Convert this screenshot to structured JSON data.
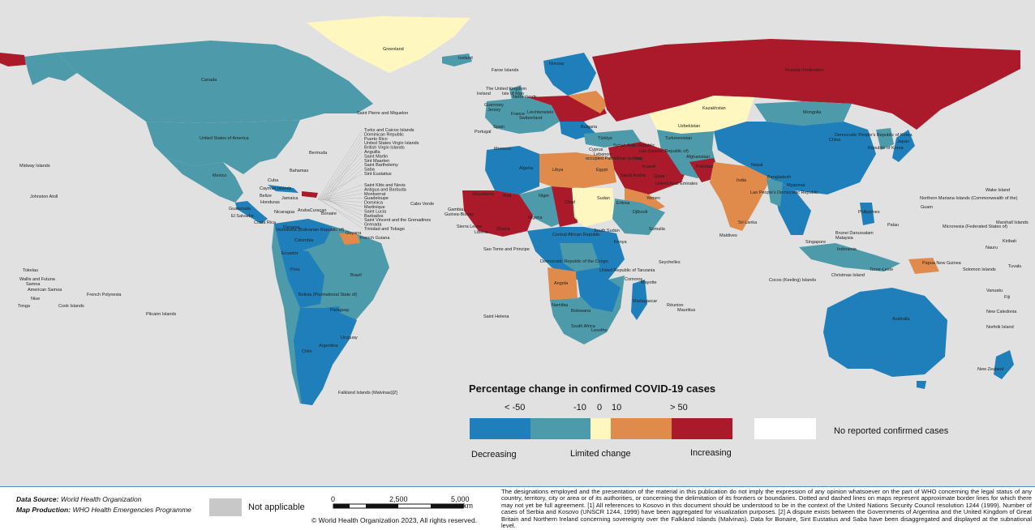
{
  "legend": {
    "title": "Percentage change in confirmed COVID-19 cases",
    "ticks": [
      "< -50",
      "-10",
      "0",
      "10",
      "> 50"
    ],
    "colors": {
      "decreasing_strong": "#1f7fba",
      "decreasing": "#4c9aaa",
      "limited": "#fff7bf",
      "increasing": "#e08a4b",
      "increasing_strong": "#ab1a2a",
      "no_reported": "#ffffff",
      "not_applicable": "#c8c8c8",
      "ocean": "#e1e1e1"
    },
    "captions": {
      "decreasing": "Decreasing",
      "limited": "Limited change",
      "increasing": "Increasing"
    },
    "no_reported": "No reported confirmed cases",
    "not_applicable": "Not applicable"
  },
  "footer": {
    "data_source_label": "Data Source:",
    "data_source": "World Health Organization",
    "map_production_label": "Map Production:",
    "map_production": "WHO Health Emergencies Programme",
    "scale": {
      "ticks": [
        "0",
        "2,500",
        "5,000"
      ],
      "unit": "km"
    },
    "copyright": "© World Health Organization 2023, All rights reserved.",
    "disclaimer": "The designations employed and the presentation of the material in this publication do not imply the expression of any opinion whatsoever on the part of WHO concerning the legal status of any country, territory, city or area or of its authorities, or concerning the delimitation of its frontiers or boundaries. Dotted and dashed lines on maps represent approximate border lines for which there may not yet be full agreement. [1] All references to Kosovo in this document should be understood to be in the context of the United Nations Security Council resolution 1244 (1999). Number of cases of Serbia and Kosovo (UNSCR 1244, 1999) have been aggregated for visualization purposes. [2] A dispute exists between the Governments of Argentina and the United Kingdom of Great Britain and Northern Ireland concerning sovereignty over the Falkland Islands (Malvinas). Data for Bonaire, Sint Eustatius and Saba have been disaggregated and displayed at the subnational level."
  },
  "map_labels": {
    "greenland": "Greenland",
    "iceland": "Iceland",
    "canada": "Canada",
    "usa": "United States of America",
    "mexico": "Mexico",
    "bermuda": "Bermuda",
    "bahamas": "Bahamas",
    "cuba": "Cuba",
    "cayman": "Cayman Islands",
    "jamaica": "Jamaica",
    "belize": "Belize",
    "honduras": "Honduras",
    "guatemala": "Guatemala",
    "el_salvador": "El Salvador",
    "nicaragua": "Nicaragua",
    "costa_rica": "Costa Rica",
    "panama": "Panama",
    "aruba_curacao": "ArubaCuraçao",
    "bonaire": "Bonaire",
    "venezuela": "Venezuela (Bolivarian Republic of)",
    "guyana": "Guyana",
    "french_guiana": "French Guiana",
    "colombia": "Colombia",
    "ecuador": "Ecuador",
    "peru": "Peru",
    "brazil": "Brazil",
    "bolivia": "Bolivia (Plurinational State of)",
    "paraguay": "Paraguay",
    "chile": "Chile",
    "argentina": "Argentina",
    "uruguay": "Uruguay",
    "falklands": "Falkland Islands (Malvinas)[2]",
    "st_pierre": "Saint Pierre and Miquelon",
    "midway": "Midway Islands",
    "johnston": "Johnston Atoll",
    "caribbean_list": [
      "Turks and Caicos Islands",
      "Dominican Republic",
      "Puerto Rico",
      "United States Virgin Islands",
      "British Virgin Islands",
      "Anguilla",
      "Saint Martin",
      "Sint Maarten",
      "Saint Barthelemy",
      "Saba",
      "Sint Eustatius",
      "Saint Kitts and Nevis",
      "Antigua and Barbuda",
      "Montserrat",
      "Guadeloupe",
      "Dominica",
      "Martinique",
      "Saint Lucia",
      "Barbados",
      "Saint Vincent and the Grenadines",
      "Grenada",
      "Trinidad and Tobago"
    ],
    "tokelau": "Tokelau",
    "wallis": "Wallis and Futuna",
    "samoa": "Samoa",
    "american_samoa": "American Samoa",
    "niue": "Niue",
    "tonga": "Tonga",
    "cook": "Cook Islands",
    "french_polynesia": "French Polynesia",
    "pitcairn": "Pitcairn Islands",
    "faroe": "Faroe Islands",
    "uk": "The United Kingdom",
    "ireland": "Ireland",
    "isle_of_man": "Isle of Man",
    "netherlands": "Netherlands",
    "guernsey": "Guernsey",
    "jersey": "Jersey",
    "portugal": "Portugal",
    "spain": "Spain",
    "france": "France",
    "liechtenstein": "Liechtenstein",
    "switzerland": "Switzerland",
    "bulgaria": "Bulgaria",
    "turkiye": "Türkiye",
    "cyprus": "Cyprus",
    "lebanon": "Lebanon",
    "syria": "Syrian Arab Republic",
    "iraq": "Iraq",
    "occupied_pt": "occupied Palestinian territory",
    "iran": "Iran (Islamic Republic of)",
    "kuwait": "Kuwait",
    "qatar": "Qatar",
    "uae": "United Arab Emirates",
    "saudi": "Saudi Arabia",
    "yemen": "Yemen",
    "egypt": "Egypt",
    "libya": "Libya",
    "algeria": "Algeria",
    "morocco": "Morocco",
    "mauritania": "Mauritania",
    "mali": "Mali",
    "niger": "Niger",
    "chad": "Chad",
    "sudan": "Sudan",
    "eritrea": "Eritrea",
    "djibouti": "Djibouti",
    "somalia": "Somalia",
    "south_sudan": "South Sudan",
    "cabo_verde": "Cabo Verde",
    "gambia": "Gambia",
    "guinea_bissau": "Guinea-Bissau",
    "sierra_leone": "Sierra Leone",
    "liberia": "Liberia",
    "ghana": "Ghana",
    "nigeria": "Nigeria",
    "car": "Central African Republic",
    "sao_tome": "Sao Tome and Principe",
    "drc": "Democratic Republic of the Congo",
    "tanzania": "United Republic of Tanzania",
    "kenya": "Kenya",
    "seychelles": "Seychelles",
    "comoros": "Comoros",
    "mayotte": "Mayotte",
    "angola": "Angola",
    "namibia": "Namibia",
    "botswana": "Botswana",
    "south_africa": "South Africa",
    "lesotho": "Lesotho",
    "madagascar": "Madagascar",
    "reunion": "Réunion",
    "mauritius": "Mauritius",
    "st_helena": "Saint Helena",
    "russia": "Russian Federation",
    "kazakhstan": "Kazakhstan",
    "turkmenistan": "Turkmenistan",
    "uzbekistan": "Uzbekistan",
    "afghanistan": "Afghanistan",
    "pakistan": "Pakistan",
    "india": "India",
    "nepal": "Nepal",
    "bangladesh": "Bangladesh",
    "sri_lanka": "Sri Lanka",
    "maldives": "Maldives",
    "mongolia": "Mongolia",
    "china": "China",
    "dprk": "Democratic People's Republic of Korea",
    "rok": "Republic of Korea",
    "japan": "Japan",
    "myanmar": "Myanmar",
    "lao": "Lao People's Democratic Republic",
    "philippines": "Philippines",
    "brunei": "Brunei Darussalam",
    "malaysia": "Malaysia",
    "singapore": "Singapore",
    "indonesia": "Indonesia",
    "timor": "Timor-Leste",
    "cocos": "Cocos (Keeling) Islands",
    "christmas": "Christmas Island",
    "png": "Papua New Guinea",
    "solomon": "Solomon Islands",
    "australia": "Australia",
    "new_zealand": "New Zealand",
    "norfolk": "Norfolk Island",
    "new_caledonia": "New Caledonia",
    "vanuatu": "Vanuatu",
    "fiji": "Fiji",
    "palau": "Palau",
    "guam": "Guam",
    "nmi": "Northern Mariana Islands (Commonwealth of the)",
    "micronesia": "Micronesia (Federated States of)",
    "marshall": "Marshall Islands",
    "nauru": "Nauru",
    "kiribati": "Kiribati",
    "tuvalu": "Tuvalu",
    "wake": "Wake Island",
    "norway": "Norway"
  }
}
